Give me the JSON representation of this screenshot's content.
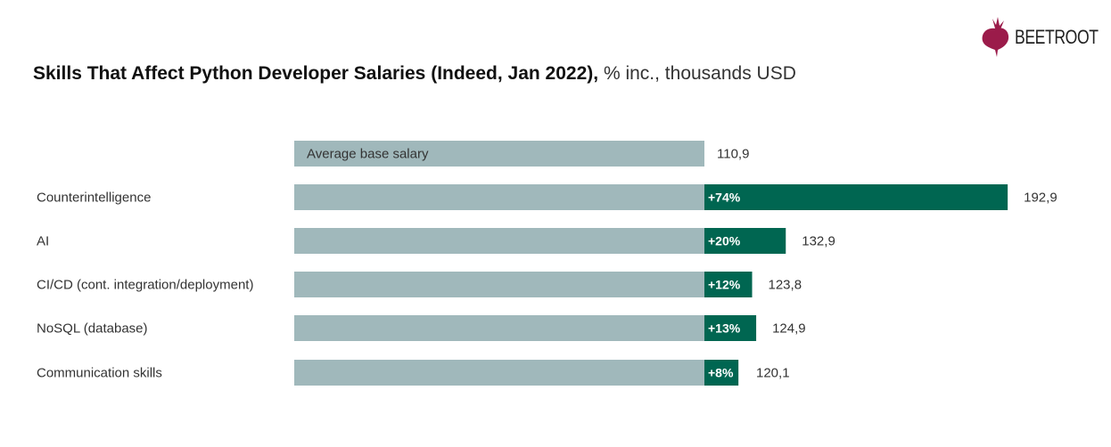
{
  "title": {
    "bold": "Skills That Affect Python Developer Salaries (Indeed, Jan 2022),",
    "regular": "% inc., thousands USD"
  },
  "logo": {
    "text": "BEETROOT",
    "color": "#9b1b4a"
  },
  "colors": {
    "base": "#a0b8bb",
    "increase": "#006651"
  },
  "chart_data": {
    "type": "bar",
    "orientation": "horizontal",
    "stacked": true,
    "title": "Skills That Affect Python Developer Salaries (Indeed, Jan 2022), % inc., thousands USD",
    "base_label": "Average base salary",
    "base_value": 110.9,
    "base_value_label": "110,9",
    "categories": [
      "Counterintelligence",
      "AI",
      "CI/CD (cont. integration/deployment)",
      "NoSQL (database)",
      "Communication skills"
    ],
    "values": [
      192.9,
      132.9,
      123.8,
      124.9,
      120.1
    ],
    "value_labels": [
      "192,9",
      "132,9",
      "123,8",
      "124,9",
      "120,1"
    ],
    "increase_labels": [
      "+74%",
      "+20%",
      "+12%",
      "+13%",
      "+8%"
    ],
    "grid": false,
    "legend": "none"
  }
}
